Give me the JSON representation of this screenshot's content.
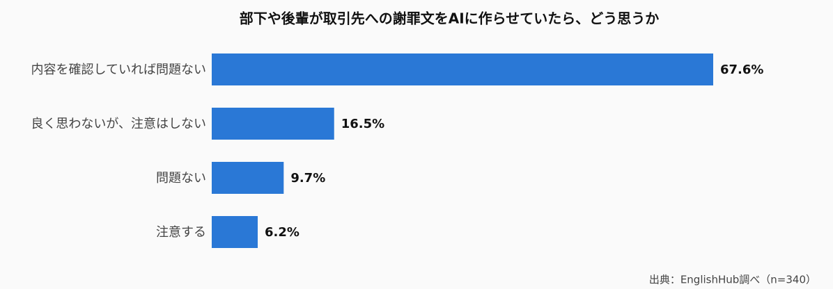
{
  "chart_data": {
    "type": "bar",
    "orientation": "horizontal",
    "title": "部下や後輩が取引先への謝罪文をAIに作らせていたら、どう思うか",
    "categories": [
      "内容を確認していれば問題ない",
      "良く思わないが、注意はしない",
      "問題ない",
      "注意する"
    ],
    "values": [
      67.6,
      16.5,
      9.7,
      6.2
    ],
    "value_labels": [
      "67.6%",
      "16.5%",
      "9.7%",
      "6.2%"
    ],
    "color": "#2a78d6",
    "source": "出典：EnglishHub調べ（n=340）"
  }
}
